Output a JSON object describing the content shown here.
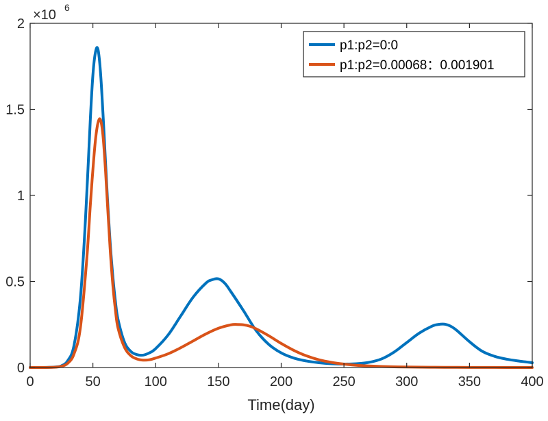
{
  "chart_data": {
    "type": "line",
    "title": "",
    "xlabel": "Time(day)",
    "ylabel": "",
    "xlim": [
      0,
      400
    ],
    "ylim": [
      0,
      2000000
    ],
    "xticks": [
      0,
      50,
      100,
      150,
      200,
      250,
      300,
      350,
      400
    ],
    "xtick_labels": [
      "0",
      "50",
      "100",
      "150",
      "200",
      "250",
      "300",
      "350",
      "400"
    ],
    "yticks": [
      0,
      500000,
      1000000,
      1500000,
      2000000
    ],
    "ytick_labels": [
      "0",
      "0.5",
      "1",
      "1.5",
      "2"
    ],
    "y_multiplier": {
      "base": "×10",
      "exponent": "6"
    },
    "grid": false,
    "legend_position": "top-right",
    "series": [
      {
        "name": "p1:p2=0:0",
        "color": "#0072BD",
        "x": [
          0,
          10,
          20,
          25,
          30,
          35,
          40,
          44,
          48,
          50,
          52,
          54,
          56,
          58,
          60,
          62,
          64,
          66,
          68,
          70,
          75,
          80,
          85,
          90,
          95,
          100,
          110,
          120,
          130,
          140,
          145,
          150,
          155,
          160,
          170,
          180,
          190,
          200,
          210,
          220,
          230,
          240,
          250,
          260,
          270,
          280,
          290,
          300,
          310,
          320,
          325,
          330,
          335,
          340,
          350,
          360,
          370,
          380,
          390,
          400
        ],
        "y": [
          0,
          0,
          3000,
          10000,
          40000,
          130000,
          400000,
          850000,
          1450000,
          1700000,
          1830000,
          1850000,
          1720000,
          1480000,
          1200000,
          930000,
          700000,
          520000,
          380000,
          280000,
          150000,
          95000,
          75000,
          72000,
          85000,
          110000,
          190000,
          300000,
          410000,
          490000,
          510000,
          515000,
          490000,
          440000,
          330000,
          215000,
          135000,
          85000,
          55000,
          38000,
          28000,
          22000,
          20000,
          22000,
          30000,
          50000,
          90000,
          145000,
          200000,
          240000,
          250000,
          252000,
          240000,
          215000,
          150000,
          95000,
          65000,
          48000,
          37000,
          28000
        ]
      },
      {
        "name": "p1:p2=0.00068：0.001901",
        "color": "#D95319",
        "x": [
          0,
          10,
          20,
          25,
          30,
          35,
          40,
          45,
          48,
          50,
          52,
          54,
          56,
          58,
          60,
          62,
          64,
          66,
          68,
          70,
          75,
          80,
          85,
          90,
          95,
          100,
          110,
          120,
          130,
          140,
          150,
          160,
          165,
          170,
          175,
          180,
          190,
          200,
          210,
          220,
          230,
          240,
          250,
          260,
          270,
          280,
          290,
          300,
          320,
          340,
          360,
          380,
          400
        ],
        "y": [
          0,
          0,
          2000,
          7000,
          25000,
          80000,
          230000,
          620000,
          950000,
          1150000,
          1320000,
          1420000,
          1440000,
          1350000,
          1150000,
          900000,
          660000,
          470000,
          330000,
          230000,
          120000,
          70000,
          50000,
          43000,
          45000,
          55000,
          80000,
          115000,
          155000,
          195000,
          228000,
          248000,
          250000,
          248000,
          240000,
          225000,
          185000,
          140000,
          100000,
          68000,
          45000,
          30000,
          20000,
          13000,
          9000,
          6000,
          4000,
          3000,
          1500,
          800,
          400,
          200,
          100
        ]
      }
    ]
  }
}
